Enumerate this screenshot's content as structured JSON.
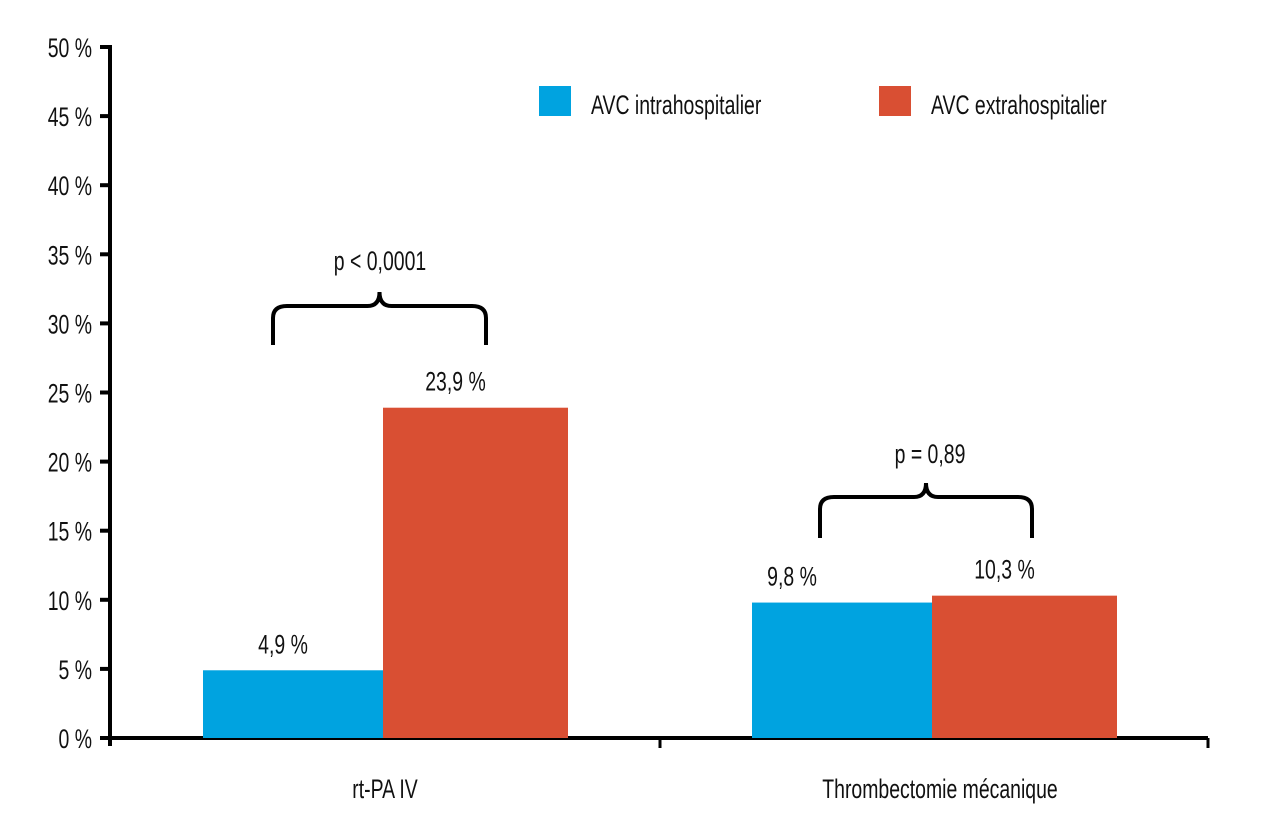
{
  "chart_data": {
    "type": "bar",
    "title": "",
    "xlabel": "",
    "ylabel": "",
    "ylim": [
      0,
      50
    ],
    "yticks": [
      0,
      5,
      10,
      15,
      20,
      25,
      30,
      35,
      40,
      45,
      50
    ],
    "ytick_labels": [
      "0 %",
      "5 %",
      "10 %",
      "15 %",
      "20 %",
      "25 %",
      "30 %",
      "35 %",
      "40 %",
      "45 %",
      "50 %"
    ],
    "categories": [
      "rt-PA IV",
      "Thrombectomie mécanique"
    ],
    "series": [
      {
        "name": "AVC intrahospitalier",
        "color": "#00a3e0",
        "values": [
          4.9,
          9.8
        ],
        "labels": [
          "4,9 %",
          "9,8 %"
        ]
      },
      {
        "name": "AVC extrahospitalier",
        "color": "#d94f33",
        "values": [
          23.9,
          10.3
        ],
        "labels": [
          "23,9 %",
          "10,3 %"
        ]
      }
    ],
    "annotations": [
      "p < 0,0001",
      "p = 0,89"
    ],
    "legend": "top-right",
    "grid": false
  }
}
